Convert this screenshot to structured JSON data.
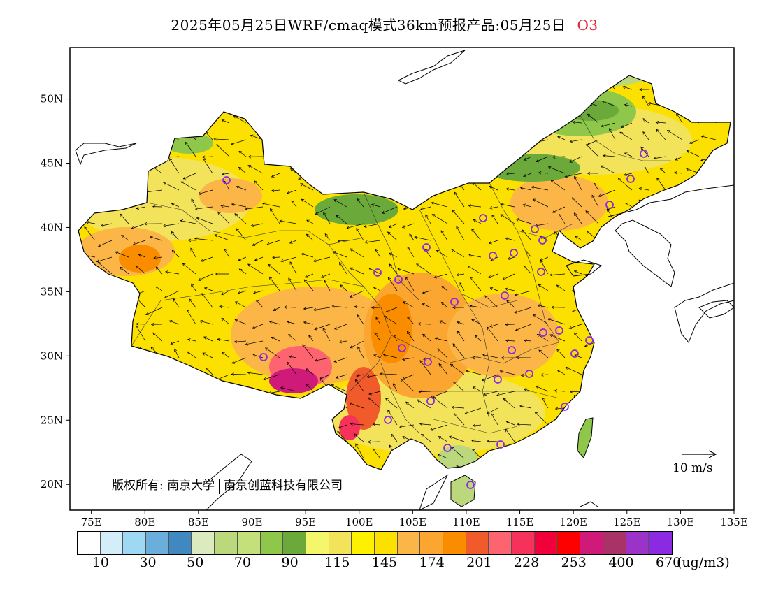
{
  "title": {
    "text": "2025年05月25日WRF/cmaq模式36km预报产品:05月25日",
    "pollutant": "O3"
  },
  "map": {
    "lon_ticks": [
      "75E",
      "80E",
      "85E",
      "90E",
      "95E",
      "100E",
      "105E",
      "110E",
      "115E",
      "120E",
      "125E",
      "130E",
      "135E"
    ],
    "lat_ticks": [
      "50N",
      "45N",
      "40N",
      "35N",
      "30N",
      "25N",
      "20N"
    ],
    "lon_range": [
      73,
      135
    ],
    "lat_range": [
      18,
      54
    ],
    "colors": {
      "background": "#ffffff",
      "coast": "#000000",
      "province_border": "#333333",
      "station": "#8a2be2"
    }
  },
  "copyright": {
    "prefix": "版权所有:",
    "org1": "南京大学",
    "org2": "南京创蓝科技有限公司"
  },
  "reference_vector": {
    "label": "10 m/s"
  },
  "legend": {
    "colors": [
      "#ffffff",
      "#d3eef9",
      "#9fd8f2",
      "#6aafdb",
      "#3f88c0",
      "#dcebbe",
      "#bbd87c",
      "#c4e07a",
      "#8ec74a",
      "#6aa93a",
      "#f4f66b",
      "#f2e35a",
      "#fdf100",
      "#fbe000",
      "#fbb647",
      "#faa630",
      "#fa8c00",
      "#f15a2b",
      "#fe6470",
      "#f7325a",
      "#f1003a",
      "#fe0000",
      "#cf1a7a",
      "#a93267",
      "#9b33c9",
      "#8b29e3"
    ],
    "labels": [
      "10",
      "30",
      "50",
      "70",
      "90",
      "115",
      "145",
      "174",
      "201",
      "228",
      "253",
      "400",
      "670"
    ],
    "unit": "(ug/m3)"
  }
}
